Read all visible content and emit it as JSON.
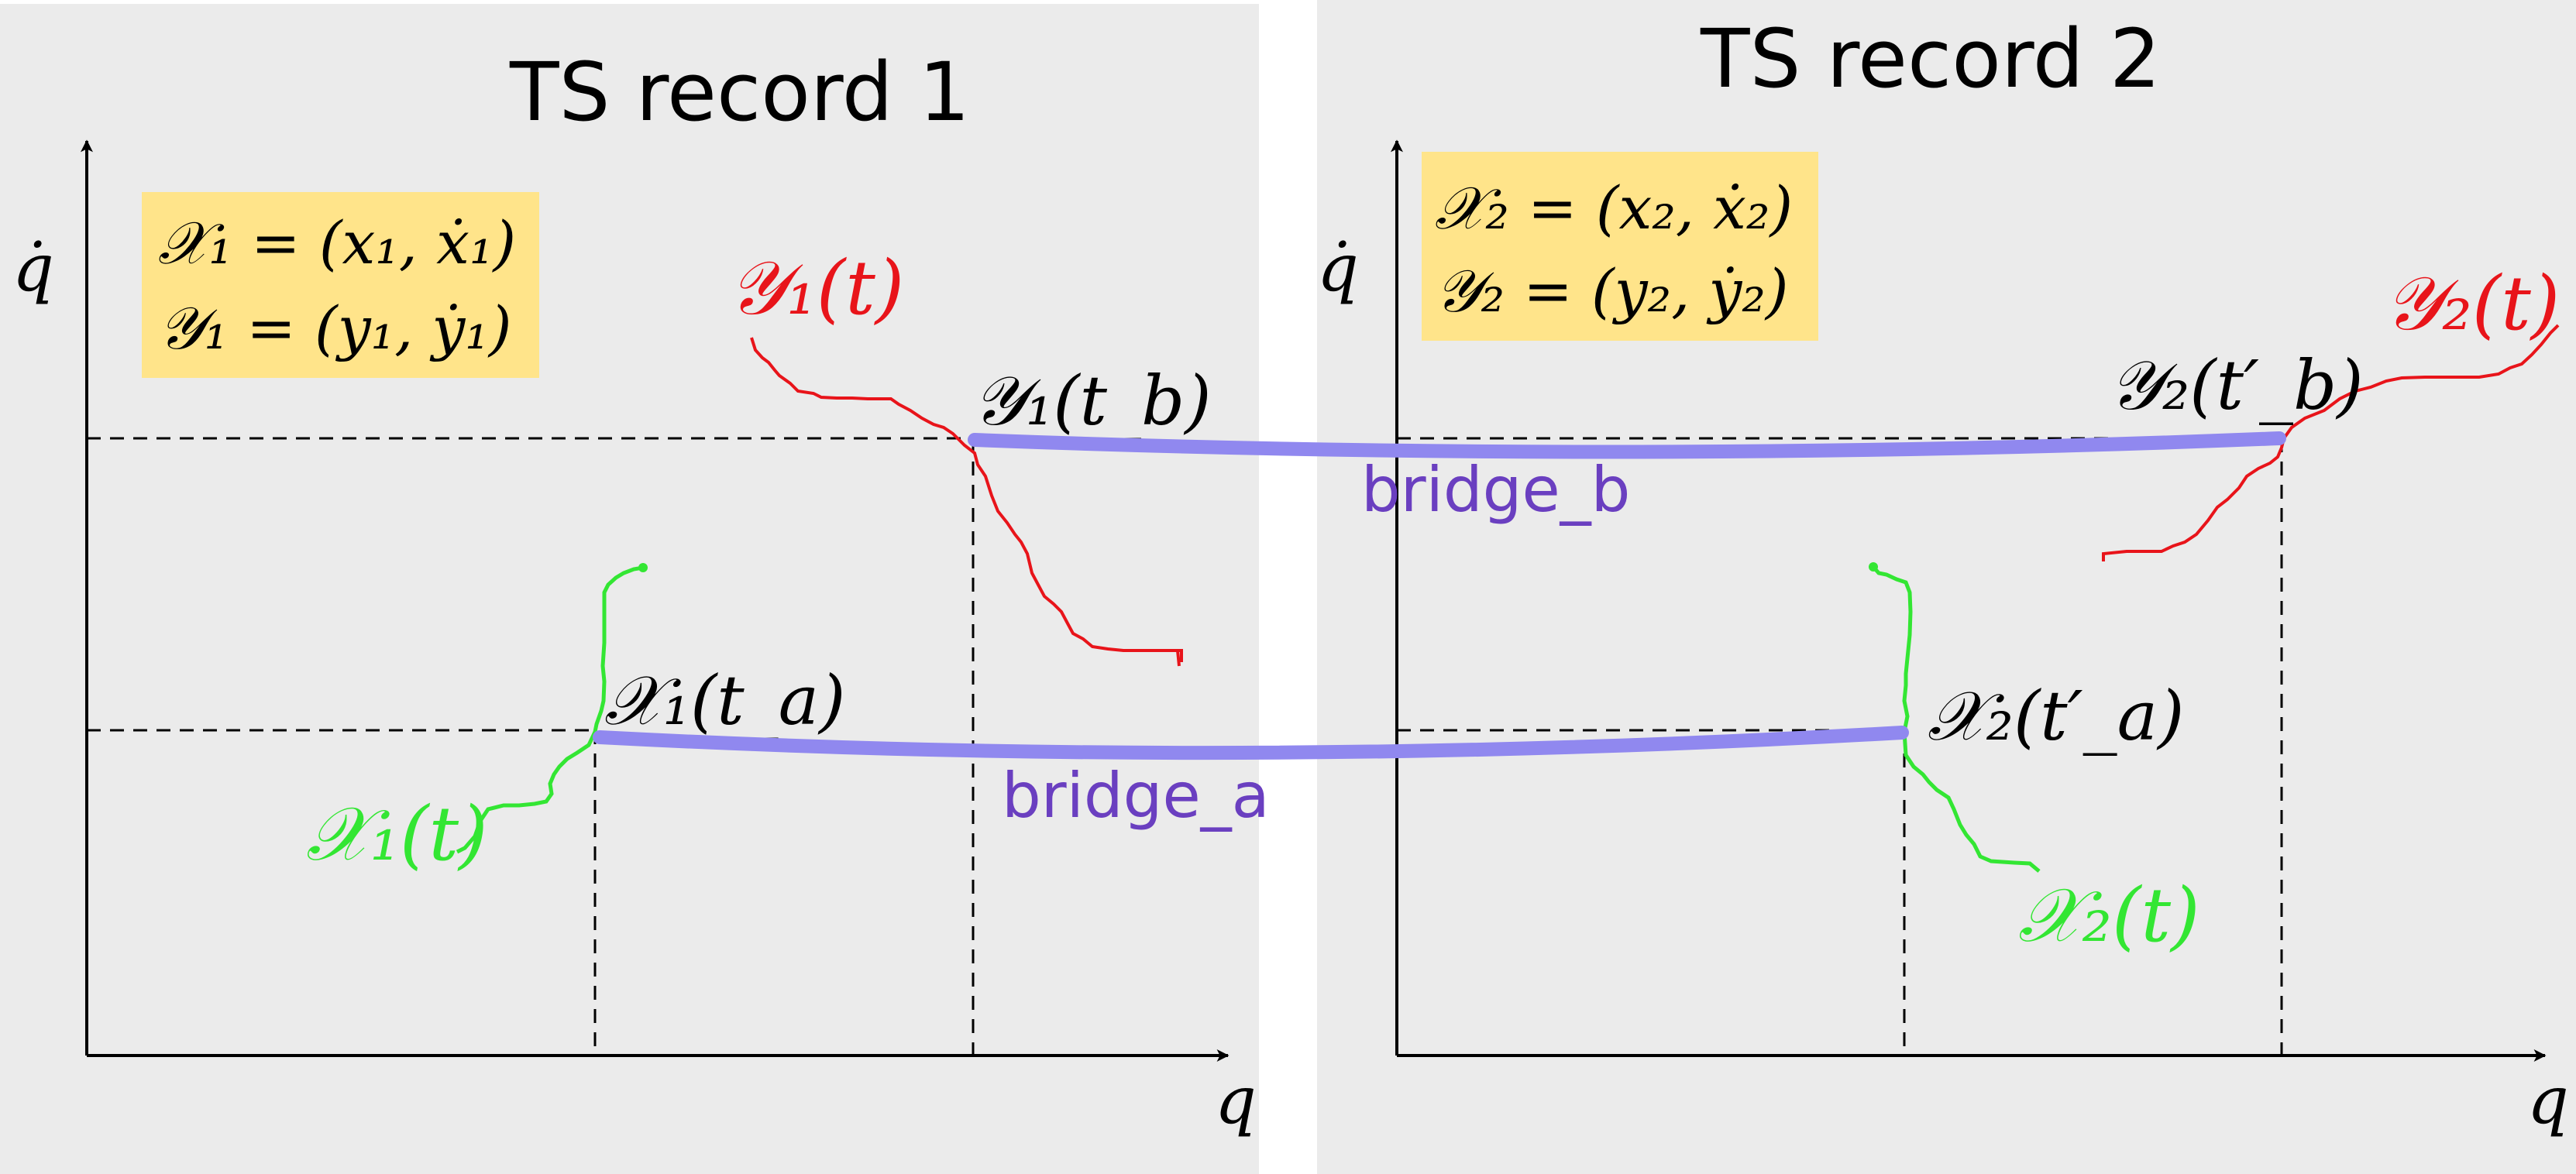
{
  "panels": [
    {
      "title": "TS record 1"
    },
    {
      "title": "TS record 2"
    }
  ],
  "panel1": {
    "box_lines": [
      "𝒳₁ = (x₁, ẋ₁)",
      "𝒴₁ = (y₁, ẏ₁)"
    ],
    "y_axis_label": "q̇",
    "x_axis_label": "q",
    "y_curve_label": "𝒴₁(t)",
    "x_curve_label": "𝒳₁(t)",
    "y_point_label": "𝒴₁(t_b)",
    "x_point_label": "𝒳₁(t_a)"
  },
  "panel2": {
    "box_lines": [
      "𝒳₂ = (x₂, ẋ₂)",
      "𝒴₂ = (y₂, ẏ₂)"
    ],
    "y_axis_label": "q̇",
    "x_axis_label": "q",
    "y_curve_label": "𝒴₂(t)",
    "x_curve_label": "𝒳₂(t)",
    "y_point_label": "𝒴₂(t′_b)",
    "x_point_label": "𝒳₂(t′_a)"
  },
  "bridges": {
    "bridge_b": "bridge_b",
    "bridge_a": "bridge_a"
  },
  "colors": {
    "panel_bg": "#ebebeb",
    "box_bg": "#ffe48a",
    "bridge": "#9088ef",
    "bridge_text": "#6a3fc0",
    "y_trajectory": "#e8141a",
    "x_trajectory": "#33e633"
  }
}
